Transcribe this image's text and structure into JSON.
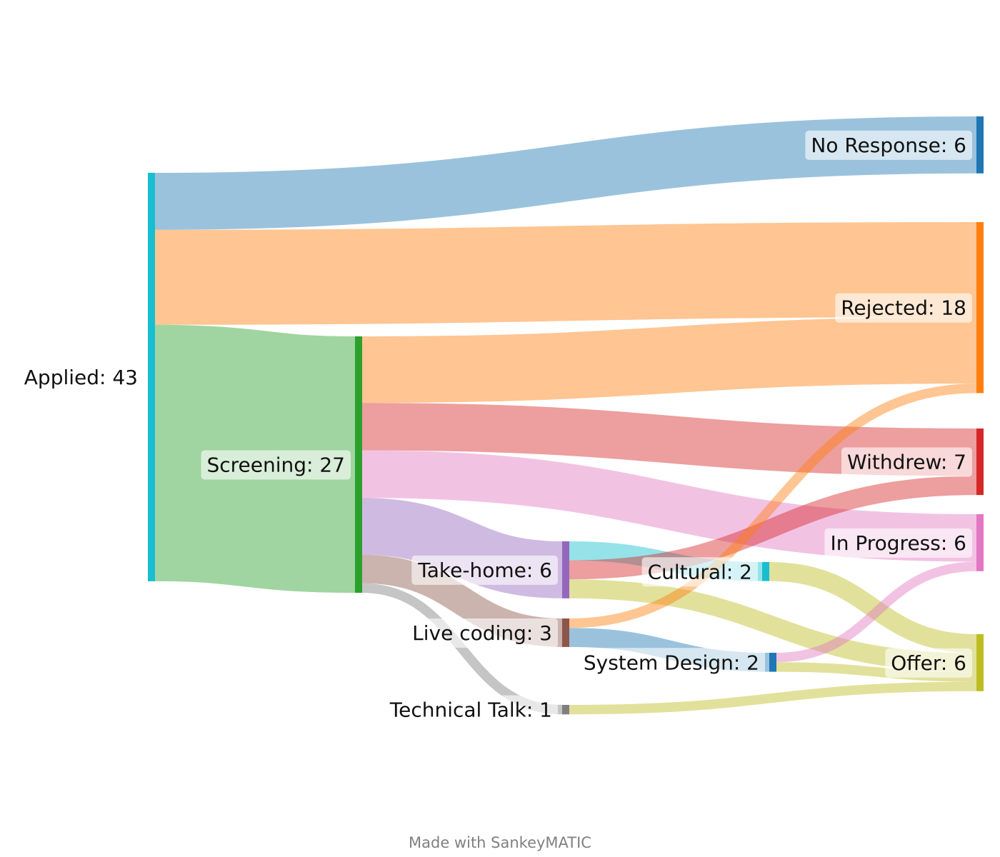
{
  "nodes": [
    {
      "id": "applied",
      "label": "Applied: 43",
      "color": "#17becf"
    },
    {
      "id": "screening",
      "label": "Screening: 27",
      "color": "#2ca02c"
    },
    {
      "id": "takehome",
      "label": "Take-home: 6",
      "color": "#9467bd"
    },
    {
      "id": "livecoding",
      "label": "Live coding: 3",
      "color": "#8c564b"
    },
    {
      "id": "techtalk",
      "label": "Technical Talk: 1",
      "color": "#7f7f7f"
    },
    {
      "id": "cultural",
      "label": "Cultural: 2",
      "color": "#17becf"
    },
    {
      "id": "sysdesign",
      "label": "System Design: 2",
      "color": "#1f77b4"
    },
    {
      "id": "noresponse",
      "label": "No Response: 6",
      "color": "#1f77b4"
    },
    {
      "id": "rejected",
      "label": "Rejected: 18",
      "color": "#ff7f0e"
    },
    {
      "id": "withdrew",
      "label": "Withdrew: 7",
      "color": "#d62728"
    },
    {
      "id": "inprogress",
      "label": "In Progress: 6",
      "color": "#e377c2"
    },
    {
      "id": "offer",
      "label": "Offer: 6",
      "color": "#bcbd22"
    }
  ],
  "flows": [
    {
      "from": "applied",
      "to": "noresponse",
      "value": 6
    },
    {
      "from": "applied",
      "to": "rejected",
      "value": 10
    },
    {
      "from": "applied",
      "to": "screening",
      "value": 27
    },
    {
      "from": "screening",
      "to": "rejected",
      "value": 7
    },
    {
      "from": "screening",
      "to": "withdrew",
      "value": 5
    },
    {
      "from": "screening",
      "to": "inprogress",
      "value": 5
    },
    {
      "from": "screening",
      "to": "takehome",
      "value": 6
    },
    {
      "from": "screening",
      "to": "livecoding",
      "value": 3
    },
    {
      "from": "screening",
      "to": "techtalk",
      "value": 1
    },
    {
      "from": "takehome",
      "to": "cultural",
      "value": 2
    },
    {
      "from": "takehome",
      "to": "withdrew",
      "value": 2
    },
    {
      "from": "takehome",
      "to": "offer",
      "value": 2
    },
    {
      "from": "livecoding",
      "to": "rejected",
      "value": 1
    },
    {
      "from": "livecoding",
      "to": "sysdesign",
      "value": 2
    },
    {
      "from": "techtalk",
      "to": "offer",
      "value": 1
    },
    {
      "from": "cultural",
      "to": "offer",
      "value": 2
    },
    {
      "from": "sysdesign",
      "to": "inprogress",
      "value": 1
    },
    {
      "from": "sysdesign",
      "to": "offer",
      "value": 1
    }
  ],
  "credit": "Made with SankeyMATIC"
}
